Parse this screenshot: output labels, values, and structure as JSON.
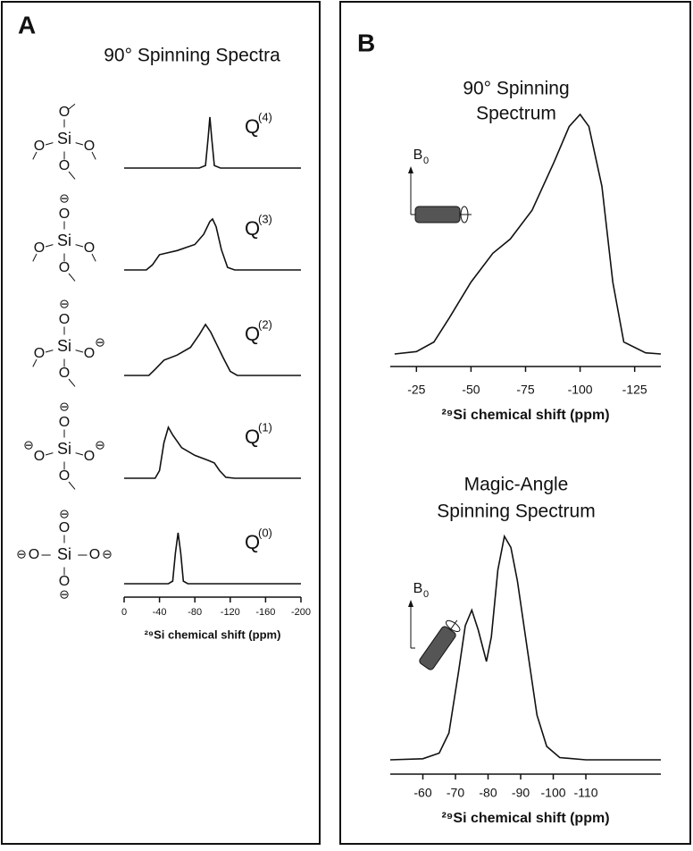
{
  "chart_data": [
    {
      "type": "line",
      "panel_label": "A",
      "title": "90° Spinning Spectra",
      "x_label": "²⁹Si  chemical shift (ppm)",
      "xlim": [
        0,
        -200
      ],
      "xticks": [
        0,
        -40,
        -80,
        -120,
        -160,
        -200
      ],
      "color": "#111111",
      "series": [
        {
          "name": "Q",
          "name_sup": "(4)",
          "center": "Si",
          "ligands": [
            {
              "text": "O"
            },
            {
              "text": "O"
            },
            {
              "text": "O"
            },
            {
              "text": "O"
            }
          ],
          "x": [
            0,
            -85,
            -92,
            -95,
            -97,
            -99,
            -102,
            -109,
            -200
          ],
          "values": [
            0,
            0,
            0.05,
            0.6,
            1,
            0.6,
            0.05,
            0,
            0
          ]
        },
        {
          "name": "Q",
          "name_sup": "(3)",
          "center": "Si",
          "ligands": [
            {
              "text": "O",
              "charge": "⊖"
            },
            {
              "text": "O"
            },
            {
              "text": "O"
            },
            {
              "text": "O"
            }
          ],
          "x": [
            0,
            -25,
            -32,
            -40,
            -60,
            -80,
            -90,
            -97,
            -100,
            -104,
            -110,
            -117,
            -125,
            -200
          ],
          "values": [
            0,
            0,
            0.1,
            0.3,
            0.38,
            0.5,
            0.7,
            0.95,
            1,
            0.85,
            0.4,
            0.05,
            0,
            0
          ]
        },
        {
          "name": "Q",
          "name_sup": "(2)",
          "center": "Si",
          "ligands": [
            {
              "text": "O",
              "charge": "⊖"
            },
            {
              "text": "O",
              "charge": "⊖"
            },
            {
              "text": "O"
            },
            {
              "text": "O"
            }
          ],
          "x": [
            0,
            -28,
            -35,
            -45,
            -60,
            -75,
            -85,
            -92,
            -98,
            -105,
            -112,
            -120,
            -128,
            -200
          ],
          "values": [
            0,
            0,
            0.12,
            0.3,
            0.4,
            0.55,
            0.8,
            1,
            0.85,
            0.6,
            0.35,
            0.08,
            0,
            0
          ]
        },
        {
          "name": "Q",
          "name_sup": "(1)",
          "center": "Si",
          "ligands": [
            {
              "text": "O",
              "charge": "⊖"
            },
            {
              "text": "O",
              "charge": "⊖"
            },
            {
              "text": "O"
            },
            {
              "text": "O",
              "charge": "⊖"
            }
          ],
          "x": [
            0,
            -35,
            -40,
            -45,
            -50,
            -55,
            -65,
            -80,
            -95,
            -102,
            -108,
            -115,
            -125,
            -200
          ],
          "values": [
            0,
            0,
            0.15,
            0.7,
            1,
            0.85,
            0.6,
            0.45,
            0.35,
            0.3,
            0.15,
            0.02,
            0,
            0
          ]
        },
        {
          "name": "Q",
          "name_sup": "(0)",
          "center": "Si",
          "ligands": [
            {
              "text": "O",
              "charge": "⊖"
            },
            {
              "text": "O",
              "charge": "⊖"
            },
            {
              "text": "O",
              "charge": "⊖"
            },
            {
              "text": "O",
              "charge": "⊖"
            }
          ],
          "x": [
            0,
            -50,
            -55,
            -58,
            -61,
            -64,
            -67,
            -72,
            -200
          ],
          "values": [
            0,
            0,
            0.05,
            0.6,
            1,
            0.6,
            0.05,
            0,
            0
          ]
        }
      ]
    },
    {
      "type": "line",
      "panel_label": "B",
      "title": [
        "90° Spinning",
        "Spectrum"
      ],
      "field_label": "B",
      "field_sub": "0",
      "x_label": "²⁹Si  chemical shift (ppm)",
      "xlim": [
        -13,
        -137
      ],
      "xticks": [
        -25,
        -50,
        -75,
        -100,
        -125
      ],
      "color": "#111111",
      "series": [
        {
          "x": [
            -15,
            -25,
            -33,
            -40,
            -50,
            -60,
            -68,
            -78,
            -88,
            -95,
            -100,
            -104,
            -110,
            -115,
            -120,
            -130,
            -137
          ],
          "values": [
            0,
            0.01,
            0.05,
            0.15,
            0.3,
            0.42,
            0.48,
            0.6,
            0.8,
            0.95,
            1,
            0.95,
            0.7,
            0.3,
            0.05,
            0.005,
            0
          ]
        }
      ]
    },
    {
      "type": "line",
      "title": [
        "Magic-Angle",
        "Spinning Spectrum"
      ],
      "field_label": "B",
      "field_sub": "0",
      "x_label": "²⁹Si  chemical shift (ppm)",
      "xlim": [
        -50,
        -133
      ],
      "xticks": [
        -60,
        -70,
        -80,
        -90,
        -100,
        -110
      ],
      "color": "#111111",
      "series": [
        {
          "x": [
            -50,
            -60,
            -65,
            -68,
            -71,
            -73,
            -75,
            -77,
            -79.5,
            -81,
            -83,
            -85,
            -87,
            -89,
            -92,
            -95,
            -98,
            -102,
            -110,
            -133
          ],
          "values": [
            0,
            0.005,
            0.03,
            0.12,
            0.4,
            0.6,
            0.67,
            0.58,
            0.44,
            0.55,
            0.85,
            1,
            0.95,
            0.8,
            0.5,
            0.2,
            0.06,
            0.01,
            0,
            0
          ]
        }
      ]
    }
  ]
}
